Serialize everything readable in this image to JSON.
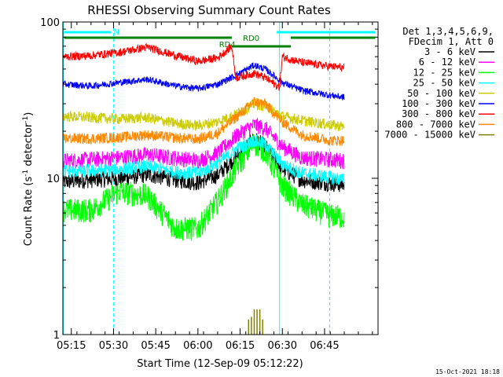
{
  "chart_data": {
    "type": "line",
    "title": "RHESSI Observing Summary Count Rates",
    "xlabel": "Start Time (12-Sep-09 05:12:22)",
    "ylabel": "Count Rate (s",
    "ylabel_sup": "-1",
    "ylabel_rest": " detector",
    "ylabel_end": ")",
    "yscale": "log",
    "ylim": [
      1,
      100
    ],
    "y_ticks": [
      {
        "value": 1,
        "label": "1"
      },
      {
        "value": 10,
        "label": "10"
      },
      {
        "value": 100,
        "label": "100"
      }
    ],
    "xlim_min": [
      0,
      112
    ],
    "x_ticks": [
      {
        "value": 3,
        "label": "05:15"
      },
      {
        "value": 18,
        "label": "05:30"
      },
      {
        "value": 33,
        "label": "05:45"
      },
      {
        "value": 48,
        "label": "06:00"
      },
      {
        "value": 63,
        "label": "06:15"
      },
      {
        "value": 78,
        "label": "06:30"
      },
      {
        "value": 93,
        "label": "06:45"
      }
    ],
    "legend": {
      "placement": "right",
      "header": [
        "Det 1,3,4,5,6,9,",
        "FDecim 1, Att 0"
      ]
    },
    "series": [
      {
        "name": "3 - 6 keV",
        "color": "#000000",
        "values_desc": [
          [
            0,
            9.5
          ],
          [
            10,
            9.8
          ],
          [
            20,
            10.0
          ],
          [
            30,
            10.6
          ],
          [
            40,
            9.8
          ],
          [
            48,
            9.4
          ],
          [
            55,
            10.5
          ],
          [
            62,
            14
          ],
          [
            68,
            18
          ],
          [
            72,
            16
          ],
          [
            78,
            11.5
          ],
          [
            85,
            9.8
          ],
          [
            95,
            9.3
          ],
          [
            100,
            9.1
          ]
        ]
      },
      {
        "name": "6 - 12 keV",
        "color": "#ff00ff",
        "values_desc": [
          [
            0,
            13
          ],
          [
            10,
            13.2
          ],
          [
            20,
            13.6
          ],
          [
            30,
            14.2
          ],
          [
            40,
            13.5
          ],
          [
            48,
            13
          ],
          [
            55,
            14.5
          ],
          [
            62,
            19
          ],
          [
            68,
            22
          ],
          [
            72,
            21
          ],
          [
            78,
            16
          ],
          [
            85,
            13.6
          ],
          [
            95,
            13.2
          ],
          [
            100,
            13
          ]
        ]
      },
      {
        "name": "12 - 25 keV",
        "color": "#00ff00",
        "values_desc": [
          [
            0,
            6.3
          ],
          [
            10,
            6.3
          ],
          [
            20,
            8.3
          ],
          [
            30,
            7.8
          ],
          [
            40,
            4.8
          ],
          [
            48,
            4.8
          ],
          [
            55,
            7.2
          ],
          [
            62,
            12
          ],
          [
            68,
            17
          ],
          [
            72,
            15
          ],
          [
            78,
            9
          ],
          [
            85,
            6.8
          ],
          [
            95,
            5.8
          ],
          [
            100,
            5.7
          ]
        ]
      },
      {
        "name": "25 - 50 keV",
        "color": "#00ffff",
        "values_desc": [
          [
            0,
            11.2
          ],
          [
            10,
            11.2
          ],
          [
            20,
            11.4
          ],
          [
            30,
            12
          ],
          [
            40,
            11
          ],
          [
            48,
            10.8
          ],
          [
            55,
            12.5
          ],
          [
            62,
            15.5
          ],
          [
            68,
            17.5
          ],
          [
            72,
            16.5
          ],
          [
            78,
            12.3
          ],
          [
            85,
            10.8
          ],
          [
            95,
            10.2
          ],
          [
            100,
            9.8
          ]
        ]
      },
      {
        "name": "50 - 100 keV",
        "color": "#cccc00",
        "values_desc": [
          [
            0,
            25
          ],
          [
            10,
            24.5
          ],
          [
            20,
            24
          ],
          [
            30,
            24.5
          ],
          [
            40,
            22.5
          ],
          [
            48,
            21.8
          ],
          [
            55,
            23
          ],
          [
            62,
            26
          ],
          [
            68,
            30
          ],
          [
            72,
            29
          ],
          [
            78,
            25
          ],
          [
            85,
            23.5
          ],
          [
            95,
            22
          ],
          [
            100,
            21.5
          ]
        ]
      },
      {
        "name": "100 - 300 keV",
        "color": "#0000ff",
        "values_desc": [
          [
            0,
            40
          ],
          [
            10,
            39
          ],
          [
            20,
            41
          ],
          [
            30,
            43
          ],
          [
            40,
            39
          ],
          [
            48,
            37.5
          ],
          [
            55,
            40
          ],
          [
            62,
            46
          ],
          [
            68,
            53
          ],
          [
            72,
            50
          ],
          [
            78,
            41
          ],
          [
            85,
            36.5
          ],
          [
            95,
            34
          ],
          [
            100,
            33
          ]
        ]
      },
      {
        "name": "300 - 800 keV",
        "color": "#ff0000",
        "values_desc": [
          [
            0,
            60
          ],
          [
            10,
            61
          ],
          [
            20,
            64
          ],
          [
            30,
            69
          ],
          [
            40,
            61
          ],
          [
            48,
            56
          ],
          [
            55,
            59
          ],
          [
            60,
            70
          ],
          [
            61.5,
            44
          ],
          [
            68,
            47
          ],
          [
            72,
            44
          ],
          [
            77,
            38
          ],
          [
            78,
            60
          ],
          [
            85,
            55
          ],
          [
            95,
            52
          ],
          [
            100,
            51
          ]
        ]
      },
      {
        "name": "800 - 7000 keV",
        "color": "#ff8800",
        "values_desc": [
          [
            0,
            18
          ],
          [
            10,
            18
          ],
          [
            20,
            18.3
          ],
          [
            30,
            19
          ],
          [
            40,
            18.2
          ],
          [
            48,
            17.8
          ],
          [
            55,
            19.5
          ],
          [
            62,
            25
          ],
          [
            68,
            31
          ],
          [
            72,
            30
          ],
          [
            78,
            23
          ],
          [
            85,
            19
          ],
          [
            95,
            17.5
          ],
          [
            100,
            17.5
          ]
        ]
      },
      {
        "name": "7000 - 15000 keV",
        "color": "#808000",
        "values_desc": [
          [
            66,
            1.1
          ],
          [
            67,
            1.15
          ],
          [
            68,
            1.3
          ],
          [
            69,
            1.3
          ],
          [
            70,
            1.3
          ],
          [
            71,
            1.1
          ]
        ]
      }
    ],
    "state_bars": [
      {
        "label": "N",
        "color": "#00ffff"
      },
      {
        "label": "RD4",
        "color": "#008000"
      },
      {
        "label": "RD0",
        "color": "#008000"
      }
    ]
  },
  "footer_timestamp": "15-Oct-2021 18:18"
}
